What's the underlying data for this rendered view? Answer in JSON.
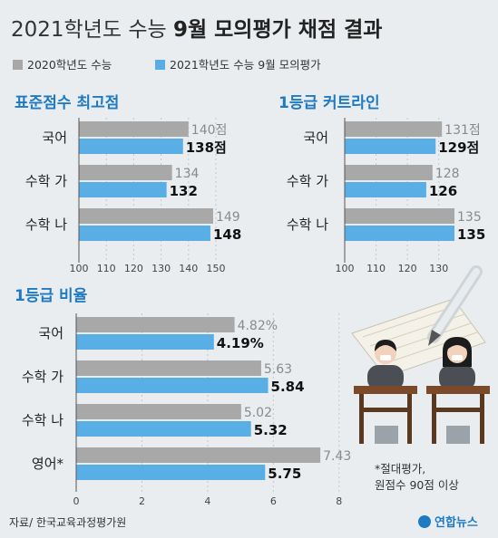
{
  "header": {
    "title_main": "2021학년도 수능 ",
    "title_bold": "9월 모의평가 채점 결과"
  },
  "legend": {
    "series_2020": "2020학년도 수능",
    "series_2021": "2021학년도 수능 9월 모의평가",
    "color_2020": "#a8a8a8",
    "color_2021": "#5aaee6"
  },
  "chart_data": [
    {
      "type": "bar",
      "title": "표준점수 최고점",
      "categories": [
        "국어",
        "수학 가",
        "수학 나"
      ],
      "series": [
        {
          "name": "2020학년도 수능",
          "values": [
            140,
            134,
            149
          ],
          "labels": [
            "140점",
            "134",
            "149"
          ]
        },
        {
          "name": "2021학년도 수능 9월 모의평가",
          "values": [
            138,
            132,
            148
          ],
          "labels": [
            "138점",
            "132",
            "148"
          ]
        }
      ],
      "xlim": [
        100,
        150
      ],
      "ticks": [
        "100",
        "110",
        "120",
        "130",
        "140",
        "150"
      ],
      "orientation": "horizontal"
    },
    {
      "type": "bar",
      "title": "1등급 커트라인",
      "categories": [
        "국어",
        "수학 가",
        "수학 나"
      ],
      "series": [
        {
          "name": "2020학년도 수능",
          "values": [
            131,
            128,
            135
          ],
          "labels": [
            "131점",
            "128",
            "135"
          ]
        },
        {
          "name": "2021학년도 수능 9월 모의평가",
          "values": [
            129,
            126,
            135
          ],
          "labels": [
            "129점",
            "126",
            "135"
          ]
        }
      ],
      "xlim": [
        100,
        135
      ],
      "ticks": [
        "100",
        "110",
        "120",
        "130"
      ],
      "orientation": "horizontal"
    },
    {
      "type": "bar",
      "title": "1등급 비율",
      "categories": [
        "국어",
        "수학 가",
        "수학 나",
        "영어*"
      ],
      "series": [
        {
          "name": "2020학년도 수능",
          "values": [
            4.82,
            5.63,
            5.02,
            7.43
          ],
          "labels": [
            "4.82%",
            "5.63",
            "5.02",
            "7.43"
          ]
        },
        {
          "name": "2021학년도 수능 9월 모의평가",
          "values": [
            4.19,
            5.84,
            5.32,
            5.75
          ],
          "labels": [
            "4.19%",
            "5.84",
            "5.32",
            "5.75"
          ]
        }
      ],
      "xlim": [
        0,
        9
      ],
      "ticks": [
        "0",
        "2",
        "4",
        "6",
        "8"
      ],
      "orientation": "horizontal"
    }
  ],
  "footnote": {
    "line1": "*절대평가,",
    "line2": "원점수 90점 이상"
  },
  "source": "자료/ 한국교육과정평가원",
  "brand": "연합뉴스"
}
